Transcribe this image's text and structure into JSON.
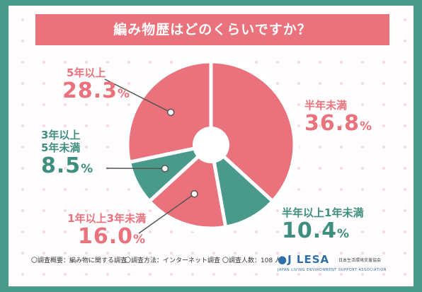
{
  "title": "編み物歴はどのくらいですか？",
  "chart_data": {
    "type": "pie",
    "slices": [
      {
        "label": "半年未満",
        "value": 36.8,
        "color": "#e9727c"
      },
      {
        "label": "半年以上1年未満",
        "value": 10.4,
        "color": "#4a9a8c"
      },
      {
        "label": "1年以上3年未満",
        "value": 16.0,
        "color": "#e9727c"
      },
      {
        "label": "3年以上5年未満",
        "value": 8.5,
        "color": "#4a9a8c"
      },
      {
        "label": "5年以上",
        "value": 28.3,
        "color": "#e9727c"
      }
    ]
  },
  "labels": {
    "s0": {
      "cat": "半年未満",
      "num": "36.8",
      "unit": "%"
    },
    "s1": {
      "cat": "半年以上1年未満",
      "num": "10.4",
      "unit": "%"
    },
    "s2": {
      "cat": "1年以上3年未満",
      "num": "16.0",
      "unit": "%"
    },
    "s3": {
      "cat1": "3年以上",
      "cat2": "5年未満",
      "num": "8.5",
      "unit": "%"
    },
    "s4": {
      "cat": "5年以上",
      "num": "28.3",
      "unit": "%"
    }
  },
  "footer": {
    "overview": "〇調査概要：編み物に関する調査",
    "method": "〇調査方法：インターネット調査",
    "count": "〇調査人数：108 人"
  },
  "logo": {
    "mark": "●J LESA",
    "jp": "日本生活環境支援協会",
    "en": "JAPAN LIVING ENVIRONMENT SUPPORT ASSOCIATION"
  }
}
